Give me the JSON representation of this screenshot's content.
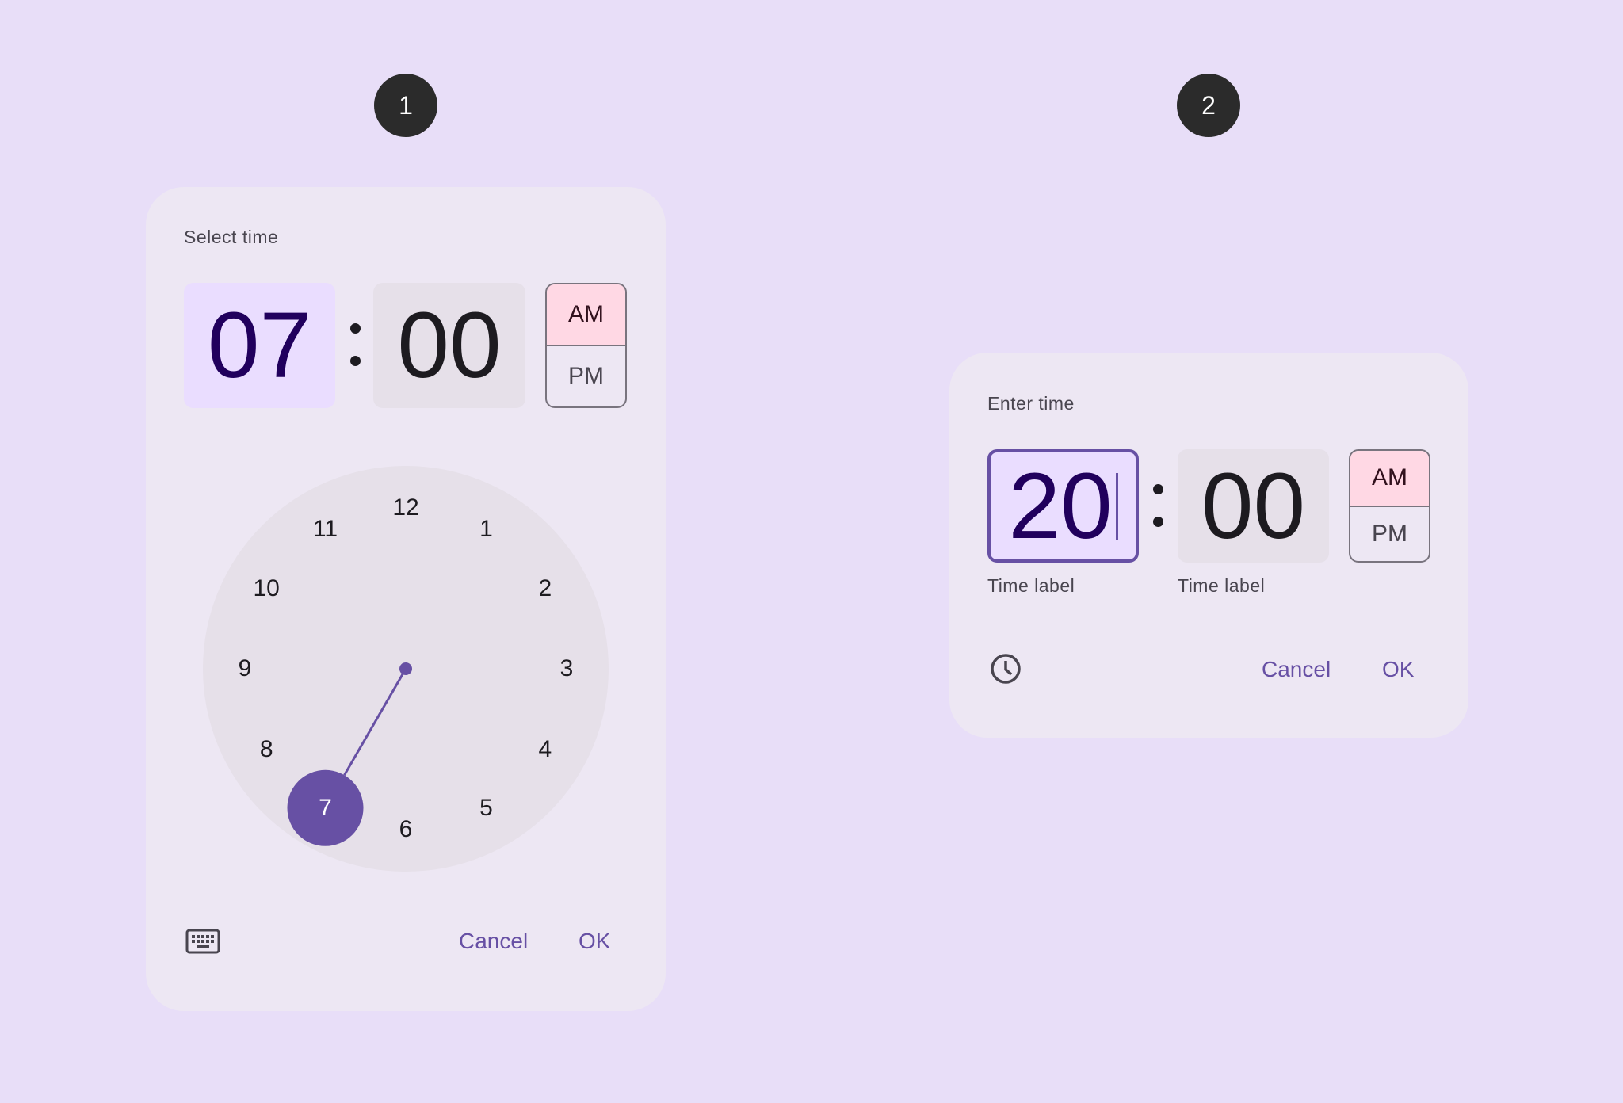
{
  "badges": [
    "1",
    "2"
  ],
  "dial_picker": {
    "title": "Select time",
    "hour": "07",
    "minute": "00",
    "am": "AM",
    "pm": "PM",
    "selected_period": "AM",
    "clock_numbers": [
      "12",
      "1",
      "2",
      "3",
      "4",
      "5",
      "6",
      "7",
      "8",
      "9",
      "10",
      "11"
    ],
    "selected_hour": "7",
    "mode_toggle_icon": "keyboard-icon",
    "cancel": "Cancel",
    "ok": "OK"
  },
  "input_picker": {
    "title": "Enter time",
    "hour": "20",
    "minute": "00",
    "hour_label": "Time label",
    "minute_label": "Time label",
    "am": "AM",
    "pm": "PM",
    "selected_period": "AM",
    "mode_toggle_icon": "clock-icon",
    "cancel": "Cancel",
    "ok": "OK"
  },
  "colors": {
    "background": "#e8def8",
    "surface": "#ede7f3",
    "primary": "#6750a4",
    "selected_field": "#eaddff",
    "am_selected": "#ffd8e4"
  }
}
